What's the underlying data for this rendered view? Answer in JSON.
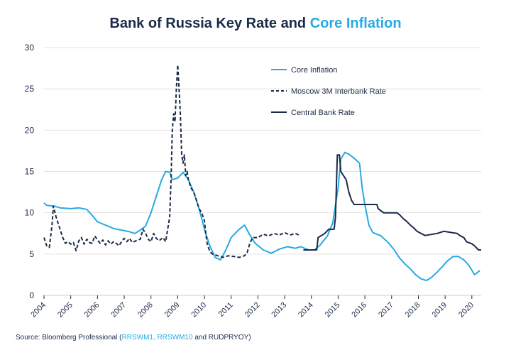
{
  "title": {
    "main": "Bank of Russia Key Rate and ",
    "accent": "Core Inflation"
  },
  "source": {
    "prefix": "Source: Bloomberg Professional (",
    "link": "RRSWM1, RRSWM10",
    "suffix": " and RUDPRYOY)"
  },
  "colors": {
    "core": "#27aae1",
    "dark": "#1b2a48",
    "grid": "#e3e3e3",
    "axis": "#cfcfcf"
  },
  "chart_data": {
    "type": "line",
    "ylim": [
      0,
      30
    ],
    "xlim": [
      2004,
      2020.35
    ],
    "y_ticks": [
      0,
      5,
      10,
      15,
      20,
      25,
      30
    ],
    "x_ticks": [
      "2004",
      "2005",
      "2006",
      "2007",
      "2008",
      "2009",
      "2010",
      "2011",
      "2012",
      "2013",
      "2014",
      "2015",
      "2016",
      "2017",
      "2018",
      "2019",
      "2020"
    ],
    "legend_position": "top-right",
    "series": [
      {
        "name": "Core Inflation",
        "style": "solid",
        "color": "#27aae1",
        "points": [
          [
            2004.0,
            11.2
          ],
          [
            2004.1,
            10.9
          ],
          [
            2004.4,
            10.8
          ],
          [
            2004.6,
            10.6
          ],
          [
            2005.0,
            10.5
          ],
          [
            2005.3,
            10.6
          ],
          [
            2005.6,
            10.4
          ],
          [
            2005.8,
            9.7
          ],
          [
            2006.0,
            8.9
          ],
          [
            2006.3,
            8.5
          ],
          [
            2006.6,
            8.1
          ],
          [
            2006.9,
            7.9
          ],
          [
            2007.2,
            7.7
          ],
          [
            2007.4,
            7.5
          ],
          [
            2007.6,
            7.9
          ],
          [
            2007.8,
            8.4
          ],
          [
            2008.0,
            10.0
          ],
          [
            2008.2,
            12.0
          ],
          [
            2008.4,
            14.0
          ],
          [
            2008.55,
            15.0
          ],
          [
            2008.7,
            14.9
          ],
          [
            2008.8,
            14.0
          ],
          [
            2009.0,
            14.2
          ],
          [
            2009.2,
            14.9
          ],
          [
            2009.4,
            14.0
          ],
          [
            2009.6,
            12.5
          ],
          [
            2009.8,
            10.5
          ],
          [
            2010.0,
            8.0
          ],
          [
            2010.2,
            6.0
          ],
          [
            2010.4,
            4.6
          ],
          [
            2010.6,
            4.3
          ],
          [
            2010.8,
            5.5
          ],
          [
            2011.0,
            7.0
          ],
          [
            2011.3,
            8.0
          ],
          [
            2011.5,
            8.5
          ],
          [
            2011.7,
            7.3
          ],
          [
            2011.9,
            6.3
          ],
          [
            2012.2,
            5.5
          ],
          [
            2012.5,
            5.1
          ],
          [
            2012.8,
            5.6
          ],
          [
            2013.1,
            5.9
          ],
          [
            2013.4,
            5.7
          ],
          [
            2013.6,
            5.9
          ],
          [
            2013.9,
            5.5
          ],
          [
            2014.1,
            5.5
          ],
          [
            2014.3,
            6.0
          ],
          [
            2014.6,
            7.2
          ],
          [
            2014.8,
            8.8
          ],
          [
            2015.0,
            13.0
          ],
          [
            2015.1,
            16.5
          ],
          [
            2015.25,
            17.3
          ],
          [
            2015.4,
            17.1
          ],
          [
            2015.6,
            16.6
          ],
          [
            2015.8,
            16.0
          ],
          [
            2015.9,
            13.0
          ],
          [
            2016.0,
            11.0
          ],
          [
            2016.15,
            8.5
          ],
          [
            2016.3,
            7.6
          ],
          [
            2016.6,
            7.2
          ],
          [
            2016.9,
            6.3
          ],
          [
            2017.1,
            5.5
          ],
          [
            2017.3,
            4.5
          ],
          [
            2017.5,
            3.8
          ],
          [
            2017.7,
            3.2
          ],
          [
            2017.9,
            2.5
          ],
          [
            2018.1,
            2.0
          ],
          [
            2018.3,
            1.8
          ],
          [
            2018.5,
            2.2
          ],
          [
            2018.7,
            2.8
          ],
          [
            2018.9,
            3.5
          ],
          [
            2019.1,
            4.2
          ],
          [
            2019.3,
            4.7
          ],
          [
            2019.5,
            4.7
          ],
          [
            2019.7,
            4.3
          ],
          [
            2019.9,
            3.6
          ],
          [
            2020.1,
            2.5
          ],
          [
            2020.3,
            3.0
          ]
        ]
      },
      {
        "name": "Moscow 3M Interbank Rate",
        "style": "dashed",
        "color": "#1b2a48",
        "points": [
          [
            2004.0,
            7.0
          ],
          [
            2004.1,
            6.0
          ],
          [
            2004.2,
            5.8
          ],
          [
            2004.3,
            8.5
          ],
          [
            2004.35,
            10.8
          ],
          [
            2004.45,
            9.5
          ],
          [
            2004.55,
            8.5
          ],
          [
            2004.7,
            7.0
          ],
          [
            2004.8,
            6.3
          ],
          [
            2004.9,
            6.5
          ],
          [
            2005.0,
            6.2
          ],
          [
            2005.1,
            6.4
          ],
          [
            2005.2,
            5.4
          ],
          [
            2005.3,
            6.6
          ],
          [
            2005.4,
            7.0
          ],
          [
            2005.5,
            6.2
          ],
          [
            2005.6,
            6.8
          ],
          [
            2005.7,
            6.4
          ],
          [
            2005.8,
            6.3
          ],
          [
            2005.9,
            7.2
          ],
          [
            2006.0,
            6.7
          ],
          [
            2006.1,
            6.3
          ],
          [
            2006.2,
            6.7
          ],
          [
            2006.3,
            6.1
          ],
          [
            2006.4,
            6.6
          ],
          [
            2006.5,
            6.2
          ],
          [
            2006.6,
            6.5
          ],
          [
            2006.7,
            6.3
          ],
          [
            2006.8,
            6.0
          ],
          [
            2006.9,
            6.5
          ],
          [
            2007.0,
            6.9
          ],
          [
            2007.1,
            6.5
          ],
          [
            2007.2,
            6.9
          ],
          [
            2007.3,
            6.4
          ],
          [
            2007.5,
            6.7
          ],
          [
            2007.6,
            6.8
          ],
          [
            2007.7,
            8.0
          ],
          [
            2007.8,
            7.5
          ],
          [
            2007.9,
            6.8
          ],
          [
            2008.0,
            6.5
          ],
          [
            2008.1,
            7.5
          ],
          [
            2008.2,
            6.9
          ],
          [
            2008.3,
            6.6
          ],
          [
            2008.45,
            7.0
          ],
          [
            2008.55,
            6.5
          ],
          [
            2008.6,
            7.5
          ],
          [
            2008.7,
            9.5
          ],
          [
            2008.75,
            14.0
          ],
          [
            2008.8,
            20.0
          ],
          [
            2008.85,
            22.0
          ],
          [
            2008.9,
            21.0
          ],
          [
            2008.95,
            25.0
          ],
          [
            2009.0,
            27.9
          ],
          [
            2009.05,
            25.0
          ],
          [
            2009.1,
            22.0
          ],
          [
            2009.15,
            17.0
          ],
          [
            2009.2,
            16.0
          ],
          [
            2009.25,
            17.0
          ],
          [
            2009.3,
            14.5
          ],
          [
            2009.35,
            15.0
          ],
          [
            2009.4,
            14.0
          ],
          [
            2009.5,
            13.0
          ],
          [
            2009.6,
            12.5
          ],
          [
            2009.7,
            11.5
          ],
          [
            2009.8,
            10.5
          ],
          [
            2009.9,
            10.0
          ],
          [
            2010.0,
            9.0
          ],
          [
            2010.05,
            7.5
          ],
          [
            2010.1,
            6.3
          ],
          [
            2010.2,
            5.3
          ],
          [
            2010.3,
            5.0
          ],
          [
            2010.5,
            4.8
          ],
          [
            2010.7,
            4.6
          ],
          [
            2010.9,
            4.8
          ],
          [
            2011.1,
            4.7
          ],
          [
            2011.3,
            4.6
          ],
          [
            2011.5,
            4.8
          ],
          [
            2011.6,
            5.2
          ],
          [
            2011.7,
            6.3
          ],
          [
            2011.8,
            7.0
          ],
          [
            2012.0,
            7.0
          ],
          [
            2012.2,
            7.4
          ],
          [
            2012.4,
            7.2
          ],
          [
            2012.6,
            7.5
          ],
          [
            2012.8,
            7.3
          ],
          [
            2013.0,
            7.6
          ],
          [
            2013.2,
            7.3
          ],
          [
            2013.4,
            7.5
          ],
          [
            2013.6,
            7.2
          ]
        ]
      },
      {
        "name": "Central Bank Rate",
        "style": "solid",
        "color": "#1b2a48",
        "points": [
          [
            2013.7,
            5.5
          ],
          [
            2014.2,
            5.5
          ],
          [
            2014.25,
            7.0
          ],
          [
            2014.5,
            7.5
          ],
          [
            2014.65,
            8.0
          ],
          [
            2014.85,
            8.0
          ],
          [
            2014.9,
            9.5
          ],
          [
            2014.97,
            17.0
          ],
          [
            2015.05,
            17.0
          ],
          [
            2015.1,
            15.0
          ],
          [
            2015.3,
            14.0
          ],
          [
            2015.4,
            12.5
          ],
          [
            2015.5,
            11.5
          ],
          [
            2015.6,
            11.0
          ],
          [
            2016.45,
            11.0
          ],
          [
            2016.5,
            10.5
          ],
          [
            2016.7,
            10.0
          ],
          [
            2017.2,
            10.0
          ],
          [
            2017.3,
            9.75
          ],
          [
            2017.45,
            9.25
          ],
          [
            2017.55,
            9.0
          ],
          [
            2017.7,
            8.5
          ],
          [
            2017.8,
            8.25
          ],
          [
            2017.95,
            7.75
          ],
          [
            2018.1,
            7.5
          ],
          [
            2018.25,
            7.25
          ],
          [
            2018.7,
            7.5
          ],
          [
            2018.95,
            7.75
          ],
          [
            2019.45,
            7.5
          ],
          [
            2019.55,
            7.25
          ],
          [
            2019.7,
            7.0
          ],
          [
            2019.8,
            6.5
          ],
          [
            2020.0,
            6.25
          ],
          [
            2020.1,
            6.0
          ],
          [
            2020.25,
            5.5
          ],
          [
            2020.35,
            5.5
          ]
        ]
      }
    ]
  }
}
